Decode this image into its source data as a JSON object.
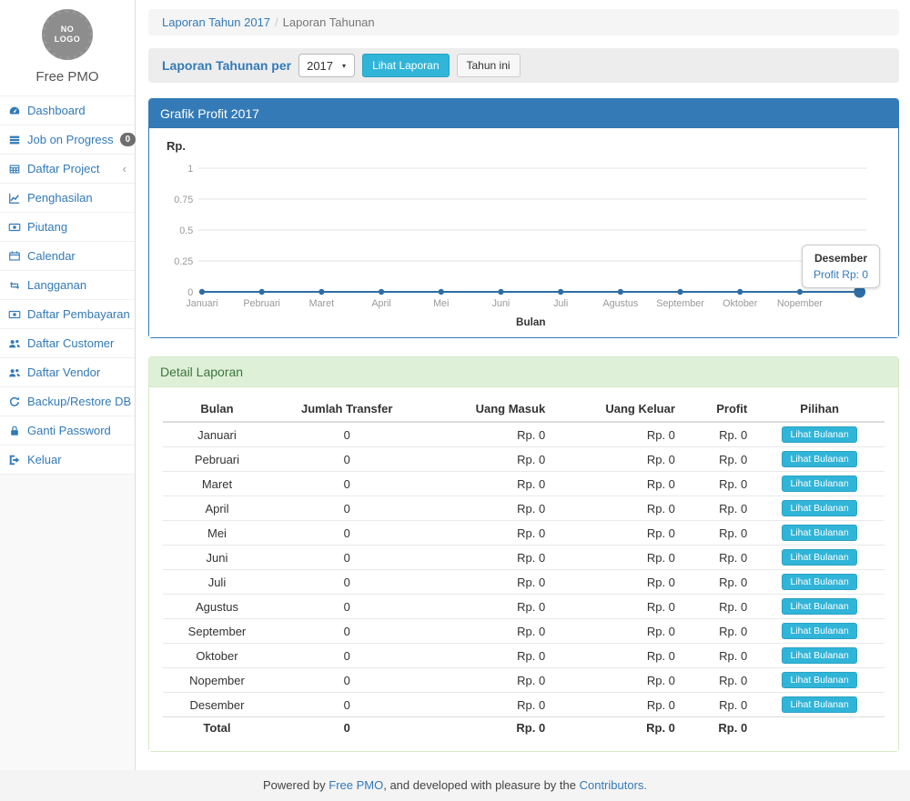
{
  "app": {
    "logo_text": "NO LOGO",
    "brand": "Free PMO"
  },
  "sidebar": {
    "items": [
      {
        "icon": "dashboard-icon",
        "label": "Dashboard"
      },
      {
        "icon": "tasks-icon",
        "label": "Job on Progress",
        "badge": "0"
      },
      {
        "icon": "table-icon",
        "label": "Daftar Project",
        "chevron": "‹"
      },
      {
        "icon": "line-chart-icon",
        "label": "Penghasilan"
      },
      {
        "icon": "money-icon",
        "label": "Piutang"
      },
      {
        "icon": "calendar-icon",
        "label": "Calendar"
      },
      {
        "icon": "retweet-icon",
        "label": "Langganan"
      },
      {
        "icon": "money-icon",
        "label": "Daftar Pembayaran"
      },
      {
        "icon": "users-icon",
        "label": "Daftar Customer"
      },
      {
        "icon": "users-icon",
        "label": "Daftar Vendor"
      },
      {
        "icon": "refresh-icon",
        "label": "Backup/Restore DB"
      },
      {
        "icon": "lock-icon",
        "label": "Ganti Password"
      },
      {
        "icon": "sign-out-icon",
        "label": "Keluar"
      }
    ]
  },
  "breadcrumb": {
    "link": "Laporan Tahun 2017",
    "separator": "/",
    "current": "Laporan Tahunan"
  },
  "filter_bar": {
    "label": "Laporan Tahunan per",
    "year_select": {
      "value": "2017"
    },
    "submit_label": "Lihat Laporan",
    "this_year_label": "Tahun ini"
  },
  "chart_panel": {
    "title": "Grafik Profit 2017"
  },
  "chart_data": {
    "type": "line",
    "title": "Grafik Profit 2017",
    "x": [
      "Januari",
      "Pebruari",
      "Maret",
      "April",
      "Mei",
      "Juni",
      "Juli",
      "Agustus",
      "September",
      "Oktober",
      "Nopember",
      "Desember"
    ],
    "series": [
      {
        "name": "Profit",
        "values": [
          0,
          0,
          0,
          0,
          0,
          0,
          0,
          0,
          0,
          0,
          0,
          0
        ]
      }
    ],
    "ylabel": "Rp.",
    "xlabel": "Bulan",
    "ylim": [
      0,
      1
    ],
    "yticks": [
      0,
      0.25,
      0.5,
      0.75,
      1
    ],
    "grid": true,
    "legend": "none",
    "line_color": "#2e6da4",
    "hovered_point": {
      "label": "Desember",
      "value": 0
    }
  },
  "tooltip": {
    "title": "Desember",
    "value": "Profit Rp: 0"
  },
  "report_panel": {
    "title": "Detail Laporan",
    "headers": [
      "Bulan",
      "Jumlah Transfer",
      "Uang Masuk",
      "Uang Keluar",
      "Profit",
      "Pilihan"
    ],
    "action_label": "Lihat Bulanan",
    "rows": [
      {
        "bulan": "Januari",
        "jumlah_transfer": "0",
        "uang_masuk": "Rp. 0",
        "uang_keluar": "Rp. 0",
        "profit": "Rp. 0"
      },
      {
        "bulan": "Pebruari",
        "jumlah_transfer": "0",
        "uang_masuk": "Rp. 0",
        "uang_keluar": "Rp. 0",
        "profit": "Rp. 0"
      },
      {
        "bulan": "Maret",
        "jumlah_transfer": "0",
        "uang_masuk": "Rp. 0",
        "uang_keluar": "Rp. 0",
        "profit": "Rp. 0"
      },
      {
        "bulan": "April",
        "jumlah_transfer": "0",
        "uang_masuk": "Rp. 0",
        "uang_keluar": "Rp. 0",
        "profit": "Rp. 0"
      },
      {
        "bulan": "Mei",
        "jumlah_transfer": "0",
        "uang_masuk": "Rp. 0",
        "uang_keluar": "Rp. 0",
        "profit": "Rp. 0"
      },
      {
        "bulan": "Juni",
        "jumlah_transfer": "0",
        "uang_masuk": "Rp. 0",
        "uang_keluar": "Rp. 0",
        "profit": "Rp. 0"
      },
      {
        "bulan": "Juli",
        "jumlah_transfer": "0",
        "uang_masuk": "Rp. 0",
        "uang_keluar": "Rp. 0",
        "profit": "Rp. 0"
      },
      {
        "bulan": "Agustus",
        "jumlah_transfer": "0",
        "uang_masuk": "Rp. 0",
        "uang_keluar": "Rp. 0",
        "profit": "Rp. 0"
      },
      {
        "bulan": "September",
        "jumlah_transfer": "0",
        "uang_masuk": "Rp. 0",
        "uang_keluar": "Rp. 0",
        "profit": "Rp. 0"
      },
      {
        "bulan": "Oktober",
        "jumlah_transfer": "0",
        "uang_masuk": "Rp. 0",
        "uang_keluar": "Rp. 0",
        "profit": "Rp. 0"
      },
      {
        "bulan": "Nopember",
        "jumlah_transfer": "0",
        "uang_masuk": "Rp. 0",
        "uang_keluar": "Rp. 0",
        "profit": "Rp. 0"
      },
      {
        "bulan": "Desember",
        "jumlah_transfer": "0",
        "uang_masuk": "Rp. 0",
        "uang_keluar": "Rp. 0",
        "profit": "Rp. 0"
      }
    ],
    "total": {
      "bulan": "Total",
      "jumlah_transfer": "0",
      "uang_masuk": "Rp. 0",
      "uang_keluar": "Rp. 0",
      "profit": "Rp. 0"
    }
  },
  "footer": {
    "prefix": "Powered by ",
    "link1": "Free PMO",
    "middle": ", and developed with pleasure by the ",
    "link2": "Contributors."
  },
  "colors": {
    "accent_blue": "#337ab7",
    "info_button": "#30b5d8",
    "success_header_bg": "#dff0d8",
    "success_header_text": "#3c763d",
    "success_border": "#d6e9c6",
    "chart_line": "#2e6da4",
    "badge_bg": "#6e6e6e"
  }
}
